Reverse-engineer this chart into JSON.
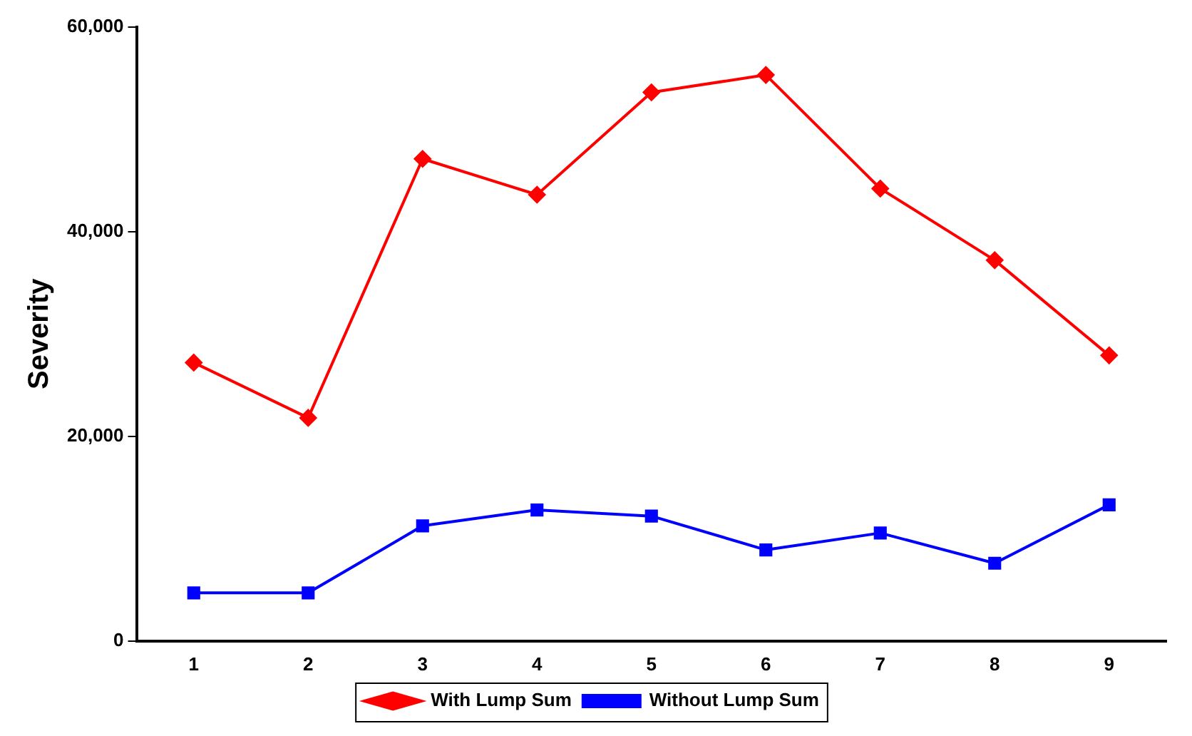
{
  "chart_data": {
    "type": "line",
    "ylabel": "Severity",
    "categories": [
      "1",
      "2",
      "3",
      "4",
      "5",
      "6",
      "7",
      "8",
      "9"
    ],
    "series": [
      {
        "name": "With Lump Sum",
        "color": "#ff0000",
        "marker": "diamond",
        "values": [
          27200,
          21800,
          47100,
          43600,
          53600,
          55300,
          44200,
          37200,
          27900
        ]
      },
      {
        "name": "Without Lump Sum",
        "color": "#0000ff",
        "marker": "square",
        "values": [
          4700,
          4700,
          11250,
          12800,
          12200,
          8900,
          10550,
          7600,
          13300
        ]
      }
    ],
    "ylim": [
      0,
      60000
    ],
    "yticks": [
      {
        "value": 0,
        "label": "0"
      },
      {
        "value": 20000,
        "label": "20,000"
      },
      {
        "value": 40000,
        "label": "40,000"
      },
      {
        "value": 60000,
        "label": "60,000"
      }
    ],
    "grid": false,
    "legend": "bottom",
    "line_style": "solid"
  }
}
